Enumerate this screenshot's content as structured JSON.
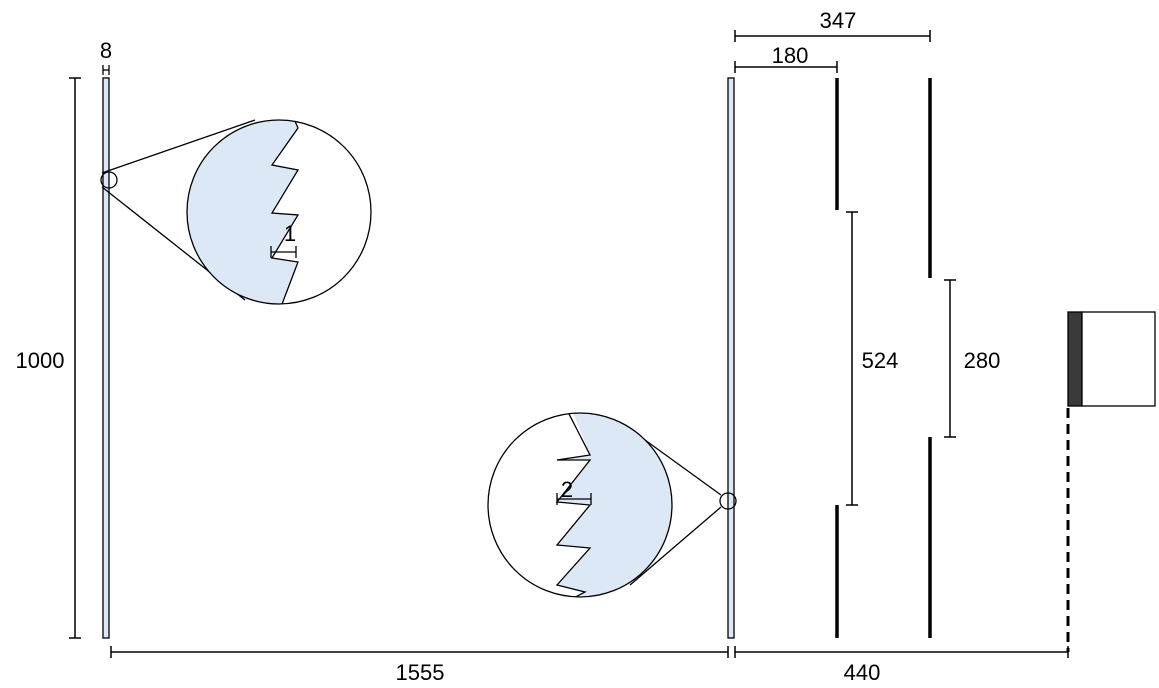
{
  "labels": {
    "plate_thickness": "8",
    "plate_height": "1000",
    "groove_depth_1": "1",
    "groove_depth_2": "2",
    "plate_separation": "1555",
    "plate_to_screen": "440",
    "slit1_distance": "180",
    "slit2_distance": "347",
    "slit1_opening": "524",
    "slit2_opening": "280"
  },
  "colors": {
    "plate_fill": "#dce8f5",
    "stroke": "#000000",
    "detector": "#3a3a3a"
  }
}
